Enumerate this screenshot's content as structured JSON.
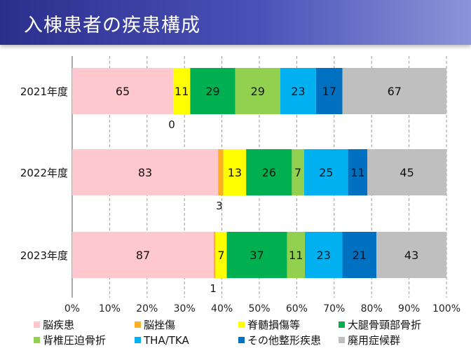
{
  "title": "入棟患者の疾患構成",
  "chart_data": {
    "type": "bar",
    "orientation": "horizontal",
    "stacked": "percent",
    "categories": [
      "2021年度",
      "2022年度",
      "2023年度"
    ],
    "series": [
      {
        "name": "脳疾患",
        "color": "#ffc7ce",
        "values": [
          65,
          83,
          87
        ]
      },
      {
        "name": "脳挫傷",
        "color": "#ffb020",
        "values": [
          0,
          3,
          1
        ]
      },
      {
        "name": "脊髄損傷等",
        "color": "#ffff00",
        "values": [
          11,
          13,
          7
        ]
      },
      {
        "name": "大腿骨頸部骨折",
        "color": "#00b050",
        "values": [
          29,
          26,
          37
        ]
      },
      {
        "name": "背椎圧迫骨折",
        "color": "#92d050",
        "values": [
          29,
          7,
          11
        ]
      },
      {
        "name": "THA/TKA",
        "color": "#00b0f0",
        "values": [
          23,
          25,
          23
        ]
      },
      {
        "name": "その他整形疾患",
        "color": "#0070c0",
        "values": [
          17,
          11,
          21
        ]
      },
      {
        "name": "廃用症候群",
        "color": "#bfbfbf",
        "values": [
          67,
          45,
          43
        ]
      }
    ],
    "xticks": [
      "0%",
      "10%",
      "20%",
      "30%",
      "40%",
      "50%",
      "60%",
      "70%",
      "80%",
      "90%",
      "100%"
    ],
    "xlim": [
      0,
      100
    ],
    "grid": "vertical dashed",
    "legend_position": "bottom"
  }
}
